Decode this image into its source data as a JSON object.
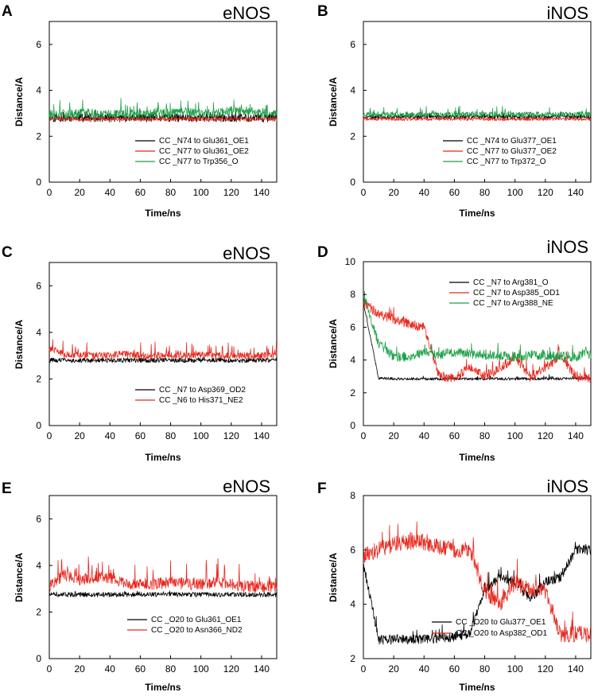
{
  "figure": {
    "chart_data": [
      {
        "id": "A",
        "panel_label": "A",
        "type": "line",
        "title": "eNOS",
        "xlabel": "Time/ns",
        "ylabel": "Distance/A",
        "xlim": [
          0,
          150
        ],
        "ylim": [
          0,
          7
        ],
        "xticks": [
          0,
          20,
          40,
          60,
          80,
          100,
          120,
          140
        ],
        "yticks": [
          0,
          2,
          4,
          6
        ],
        "legend_position": "lower-right",
        "series": [
          {
            "name": "CC  _N74 to Glu361_OE1",
            "color": "#000000",
            "base": [
              2.8,
              2.8,
              2.8,
              2.8,
              2.8,
              2.8,
              2.8,
              2.8,
              2.8,
              2.8,
              2.8,
              2.8,
              2.8,
              2.8,
              2.8,
              2.8
            ],
            "noise": 0.18,
            "spike": 0.25,
            "seed": 11
          },
          {
            "name": "CC  _N77 to Glu361_OE2",
            "color": "#e8281e",
            "base": [
              2.75,
              2.75,
              2.75,
              2.75,
              2.75,
              2.75,
              2.75,
              2.75,
              2.75,
              2.75,
              2.75,
              2.75,
              2.75,
              2.75,
              2.75,
              2.75
            ],
            "noise": 0.08,
            "spike": 0.05,
            "seed": 12
          },
          {
            "name": "CC  _N77 to Trp356_O",
            "color": "#1ea048",
            "base": [
              2.95,
              2.95,
              3.0,
              3.0,
              2.95,
              2.95,
              2.95,
              3.0,
              3.0,
              3.05,
              3.0,
              3.0,
              3.1,
              3.1,
              3.0,
              3.0
            ],
            "noise": 0.2,
            "spike": 0.55,
            "seed": 13
          }
        ]
      },
      {
        "id": "B",
        "panel_label": "B",
        "type": "line",
        "title": "iNOS",
        "xlabel": "Time/ns",
        "ylabel": "Distance/A",
        "xlim": [
          0,
          150
        ],
        "ylim": [
          0,
          7
        ],
        "xticks": [
          0,
          20,
          40,
          60,
          80,
          100,
          120,
          140
        ],
        "yticks": [
          0,
          2,
          4,
          6
        ],
        "legend_position": "lower-right",
        "series": [
          {
            "name": "CC  _N74 to Glu377_OE1",
            "color": "#000000",
            "base": [
              2.85,
              2.85,
              2.85,
              2.85,
              2.85,
              2.85,
              2.85,
              2.85,
              2.85,
              2.85,
              2.85,
              2.85,
              2.85,
              2.85,
              2.85,
              2.85
            ],
            "noise": 0.1,
            "spike": 0.15,
            "seed": 21
          },
          {
            "name": "CC  _N77 to Glu377_OE2",
            "color": "#e8281e",
            "base": [
              2.75,
              2.75,
              2.75,
              2.75,
              2.75,
              2.75,
              2.75,
              2.75,
              2.75,
              2.75,
              2.75,
              2.75,
              2.75,
              2.75,
              2.75,
              2.75
            ],
            "noise": 0.07,
            "spike": 0.05,
            "seed": 22
          },
          {
            "name": "CC  _N77 to Trp372_O",
            "color": "#1ea048",
            "base": [
              2.95,
              2.95,
              2.95,
              2.95,
              2.95,
              2.95,
              2.95,
              2.95,
              2.95,
              2.95,
              2.95,
              2.95,
              2.95,
              2.95,
              2.95,
              2.95
            ],
            "noise": 0.12,
            "spike": 0.3,
            "seed": 23
          }
        ]
      },
      {
        "id": "C",
        "panel_label": "C",
        "type": "line",
        "title": "eNOS",
        "xlabel": "Time/ns",
        "ylabel": "Distance/A",
        "xlim": [
          0,
          150
        ],
        "ylim": [
          0,
          7
        ],
        "xticks": [
          0,
          20,
          40,
          60,
          80,
          100,
          120,
          140
        ],
        "yticks": [
          0,
          2,
          4,
          6
        ],
        "legend_position": "lower-right",
        "series": [
          {
            "name": "CC  _N7 to Asp369_OD2",
            "color": "#000000",
            "base": [
              2.8,
              2.8,
              2.8,
              2.8,
              2.8,
              2.8,
              2.8,
              2.8,
              2.8,
              2.8,
              2.8,
              2.8,
              2.8,
              2.8,
              2.8,
              2.8
            ],
            "noise": 0.1,
            "spike": 0.1,
            "seed": 31
          },
          {
            "name": "CC  _N6 to His371_NE2",
            "color": "#e8281e",
            "base": [
              3.3,
              3.05,
              3.05,
              3.0,
              3.0,
              3.1,
              3.0,
              3.0,
              3.05,
              3.0,
              3.05,
              3.0,
              3.0,
              3.0,
              3.0,
              3.0
            ],
            "noise": 0.15,
            "spike": 0.5,
            "seed": 32
          }
        ]
      },
      {
        "id": "D",
        "panel_label": "D",
        "type": "line",
        "title": "iNOS",
        "xlabel": "Time/ns",
        "ylabel": "Distance/A",
        "xlim": [
          0,
          150
        ],
        "ylim": [
          0,
          10
        ],
        "xticks": [
          0,
          20,
          40,
          60,
          80,
          100,
          120,
          140
        ],
        "yticks": [
          0,
          2,
          4,
          6,
          8,
          10
        ],
        "legend_position": "upper-right",
        "series": [
          {
            "name": "CC  _N7 to Arg381_O",
            "color": "#000000",
            "base": [
              7.5,
              2.9,
              2.85,
              2.85,
              2.85,
              2.85,
              2.85,
              2.85,
              2.85,
              2.85,
              2.85,
              2.85,
              2.85,
              2.85,
              2.9,
              2.9
            ],
            "noise": 0.08,
            "spike": 0.2,
            "seed": 41
          },
          {
            "name": "CC  _N7 to Asp385_OD1",
            "color": "#e8281e",
            "base": [
              7.5,
              6.8,
              6.5,
              6.2,
              6.0,
              3.0,
              2.9,
              3.5,
              3.0,
              3.5,
              4.2,
              3.0,
              3.5,
              4.3,
              3.0,
              2.9
            ],
            "noise": 0.3,
            "spike": 0.6,
            "seed": 42
          },
          {
            "name": "CC  _N7 to Arg388_NE",
            "color": "#1ea048",
            "base": [
              8.0,
              5.0,
              4.2,
              4.2,
              4.5,
              4.3,
              4.5,
              4.4,
              4.3,
              4.3,
              4.2,
              4.3,
              4.3,
              4.2,
              4.2,
              4.4
            ],
            "noise": 0.3,
            "spike": 0.5,
            "seed": 43
          }
        ]
      },
      {
        "id": "E",
        "panel_label": "E",
        "type": "line",
        "title": "eNOS",
        "xlabel": "Time/ns",
        "ylabel": "Distance/A",
        "xlim": [
          0,
          150
        ],
        "ylim": [
          0,
          7
        ],
        "xticks": [
          0,
          20,
          40,
          60,
          80,
          100,
          120,
          140
        ],
        "yticks": [
          0,
          2,
          4,
          6
        ],
        "legend_position": "lower-right",
        "series": [
          {
            "name": "CC  _O20 to Glu361_OE1",
            "color": "#000000",
            "base": [
              2.75,
              2.75,
              2.75,
              2.75,
              2.75,
              2.75,
              2.75,
              2.75,
              2.75,
              2.75,
              2.75,
              2.75,
              2.75,
              2.75,
              2.75,
              2.75
            ],
            "noise": 0.1,
            "spike": 0.1,
            "seed": 51
          },
          {
            "name": "CC  _O20 to Asn366_ND2",
            "color": "#e8281e",
            "base": [
              3.1,
              3.6,
              3.4,
              3.5,
              3.5,
              3.2,
              3.2,
              3.2,
              3.3,
              3.2,
              3.2,
              3.3,
              3.2,
              3.1,
              3.1,
              3.1
            ],
            "noise": 0.25,
            "spike": 0.9,
            "seed": 52
          }
        ]
      },
      {
        "id": "F",
        "panel_label": "F",
        "type": "line",
        "title": "iNOS",
        "xlabel": "Time/ns",
        "ylabel": "Distance/A",
        "xlim": [
          0,
          150
        ],
        "ylim": [
          2,
          8
        ],
        "xticks": [
          0,
          20,
          40,
          60,
          80,
          100,
          120,
          140
        ],
        "yticks": [
          2,
          4,
          6,
          8
        ],
        "legend_position": "lower-right",
        "series": [
          {
            "name": "CC  _O20 to Glu377_OE1",
            "color": "#000000",
            "base": [
              5.5,
              2.7,
              2.7,
              2.7,
              2.7,
              2.75,
              2.8,
              2.9,
              4.5,
              5.0,
              4.8,
              4.2,
              4.8,
              5.0,
              6.0,
              6.0
            ],
            "noise": 0.18,
            "spike": 0.5,
            "seed": 61
          },
          {
            "name": "CC  _O20 to Asp382_OD1",
            "color": "#e8281e",
            "base": [
              5.8,
              6.0,
              6.2,
              6.3,
              6.3,
              6.1,
              6.0,
              6.0,
              4.5,
              4.0,
              4.8,
              4.5,
              4.5,
              2.9,
              2.9,
              2.9
            ],
            "noise": 0.3,
            "spike": 0.7,
            "seed": 62
          }
        ]
      }
    ]
  }
}
